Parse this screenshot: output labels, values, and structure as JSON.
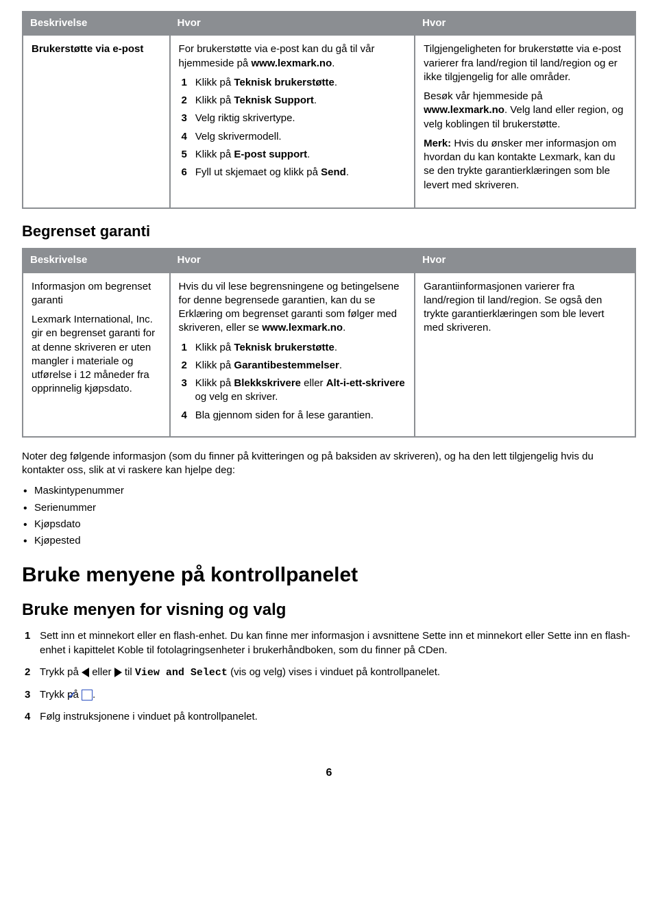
{
  "table1": {
    "headers": [
      "Beskrivelse",
      "Hvor",
      "Hvor"
    ],
    "row": {
      "desc": "Brukerstøtte via e-post",
      "mid_intro_1": "For brukerstøtte via e-post kan du gå til vår hjemmeside på ",
      "mid_intro_bold": "www.lexmark.no",
      "mid_intro_2": ".",
      "steps": [
        {
          "n": "1",
          "pre": "Klikk på ",
          "b": "Teknisk brukerstøtte",
          "post": "."
        },
        {
          "n": "2",
          "pre": "Klikk på ",
          "b": "Teknisk Support",
          "post": "."
        },
        {
          "n": "3",
          "pre": "Velg riktig skrivertype.",
          "b": "",
          "post": ""
        },
        {
          "n": "4",
          "pre": "Velg skrivermodell.",
          "b": "",
          "post": ""
        },
        {
          "n": "5",
          "pre": "Klikk på ",
          "b": "E-post support",
          "post": "."
        },
        {
          "n": "6",
          "pre": "Fyll ut skjemaet og klikk på ",
          "b": "Send",
          "post": "."
        }
      ],
      "right_p1": "Tilgjengeligheten for brukerstøtte via e-post varierer fra land/region til land/region og er ikke tilgjengelig for alle områder.",
      "right_p2_a": "Besøk vår hjemmeside på ",
      "right_p2_b": "www.lexmark.no",
      "right_p2_c": ". Velg land eller region, og velg koblingen til brukerstøtte.",
      "right_p3_b": "Merk: ",
      "right_p3": "Hvis du ønsker mer informasjon om hvordan du kan kontakte Lexmark, kan du se den trykte garantierklæringen som ble levert med skriveren."
    }
  },
  "section2_title": "Begrenset garanti",
  "table2": {
    "headers": [
      "Beskrivelse",
      "Hvor",
      "Hvor"
    ],
    "row": {
      "desc_p1": "Informasjon om begrenset garanti",
      "desc_p2": "Lexmark International, Inc. gir en begrenset garanti for at denne skriveren er uten mangler i materiale og utførelse i 12 måneder fra opprinnelig kjøpsdato.",
      "mid_intro_a": "Hvis du vil lese begrensningene og betingelsene for denne begrensede garantien, kan du se Erklæring om begrenset garanti som følger med skriveren, eller se ",
      "mid_intro_b": "www.lexmark.no",
      "mid_intro_c": ".",
      "steps": [
        {
          "n": "1",
          "pre": "Klikk på ",
          "b": "Teknisk brukerstøtte",
          "post": "."
        },
        {
          "n": "2",
          "pre": "Klikk på ",
          "b": "Garantibestemmelser",
          "post": "."
        },
        {
          "n": "3",
          "pre": "Klikk på ",
          "b": "Blekkskrivere",
          "mid": " eller ",
          "b2": "Alt-i-ett-skrivere",
          "post": " og velg en skriver."
        },
        {
          "n": "4",
          "pre": "Bla gjennom siden for å lese garantien.",
          "b": "",
          "post": ""
        }
      ],
      "right": "Garantiinformasjonen varierer fra land/region til land/region. Se også den trykte garantierklæringen som ble levert med skriveren."
    }
  },
  "note_para": "Noter deg følgende informasjon (som du finner på kvitteringen og på baksiden av skriveren), og ha den lett tilgjengelig hvis du kontakter oss, slik at vi raskere kan hjelpe deg:",
  "bullets": [
    "Maskintypenummer",
    "Serienummer",
    "Kjøpsdato",
    "Kjøpested"
  ],
  "h1": "Bruke menyene på kontrollpanelet",
  "h2": "Bruke menyen for visning og valg",
  "steps_main": {
    "s1": "Sett inn et minnekort eller en flash-enhet. Du kan finne mer informasjon i avsnittene Sette inn et minnekort eller Sette inn en flash-enhet i kapittelet Koble til fotolagringsenheter i brukerhåndboken, som du finner på CDen.",
    "s2a": "Trykk på ",
    "s2b": " eller ",
    "s2c": " til ",
    "s2_mono": "View and Select",
    "s2d": " (vis og velg) vises i vinduet på kontrollpanelet.",
    "s3a": "Trykk på ",
    "s3b": ".",
    "s4": "Følg instruksjonene i vinduet på kontrollpanelet."
  },
  "page": "6"
}
